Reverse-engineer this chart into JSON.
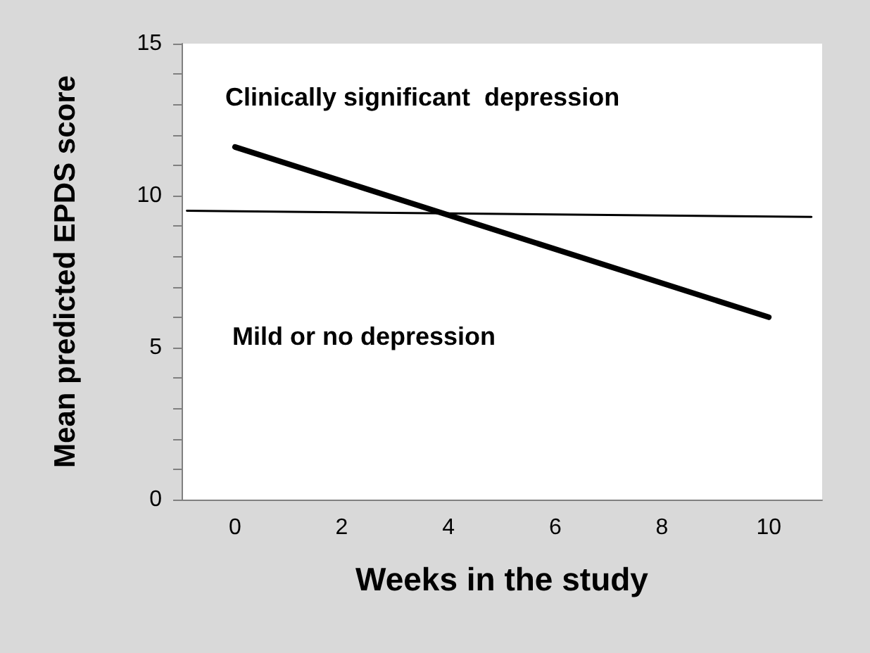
{
  "chart_data": {
    "type": "line",
    "xlabel": "Weeks in the study",
    "ylabel": "Mean predicted EPDS score",
    "xlim": [
      -1,
      11
    ],
    "xticks": [
      0,
      2,
      4,
      6,
      8,
      10
    ],
    "ylim": [
      0,
      15
    ],
    "yticks": [
      0,
      5,
      10,
      15
    ],
    "grid": false,
    "marker": "none",
    "line_style": "solid",
    "series": [
      {
        "color": "#000000",
        "x": [
          0,
          10
        ],
        "values": [
          11.6,
          6.0
        ]
      },
      {
        "color": "#000000",
        "x": [
          -0.9,
          10.8
        ],
        "values": [
          9.5,
          9.3
        ]
      }
    ],
    "annotations": [
      "Clinically significant  depression",
      "Mild or no depression"
    ]
  }
}
